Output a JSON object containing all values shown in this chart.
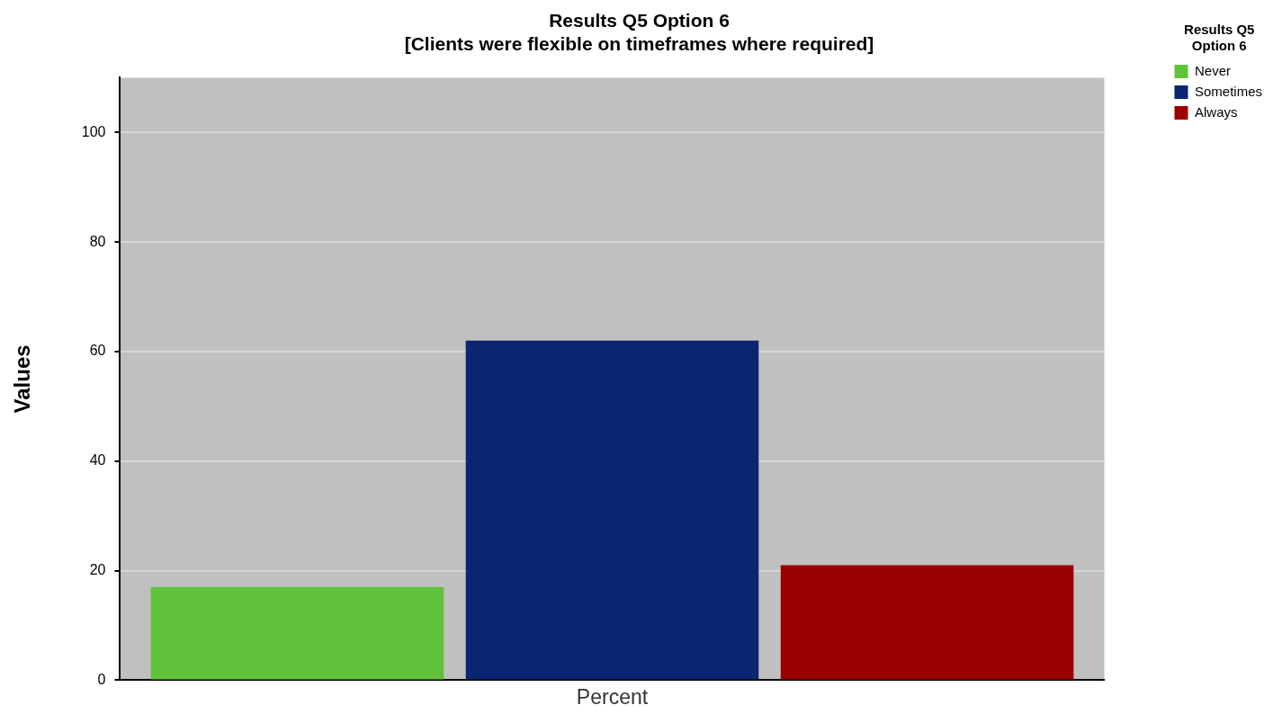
{
  "chart_data": {
    "type": "bar",
    "title": "Results Q5 Option 6",
    "subtitle": "[Clients were flexible on timeframes where required]",
    "ylabel": "Values",
    "legend_title": "Results Q5 Option 6",
    "categories": [
      "Percent"
    ],
    "series": [
      {
        "name": "Never",
        "color": "#5fc23a",
        "values": [
          17
        ]
      },
      {
        "name": "Sometimes",
        "color": "#0a2670",
        "values": [
          62
        ]
      },
      {
        "name": "Always",
        "color": "#9b0000",
        "values": [
          21
        ]
      }
    ],
    "ylim": [
      0,
      110
    ],
    "yticks": [
      0,
      20,
      40,
      60,
      80,
      100
    ],
    "grid": "y",
    "legend": "top right"
  }
}
